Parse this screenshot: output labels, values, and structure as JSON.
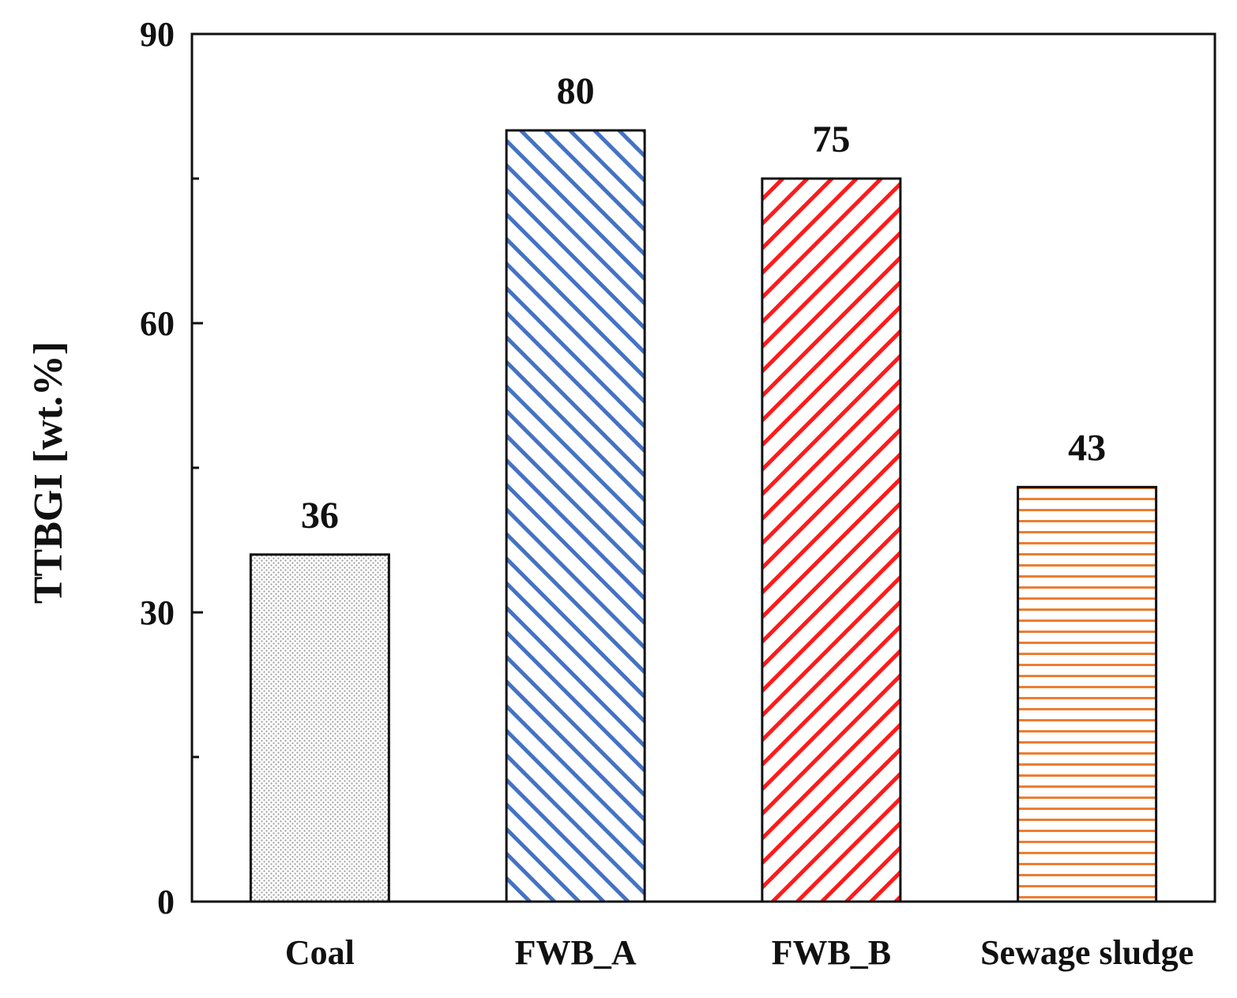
{
  "chart_data": {
    "type": "bar",
    "title": "",
    "xlabel": "",
    "ylabel": "TTBGI [wt.%]",
    "ylim": [
      0,
      90
    ],
    "yticks": [
      0,
      30,
      60,
      90
    ],
    "minor_step": 15,
    "grid": false,
    "categories": [
      "Coal",
      "FWB_A",
      "FWB_B",
      "Sewage sludge"
    ],
    "values": [
      36,
      80,
      75,
      43
    ],
    "data_labels": [
      "36",
      "80",
      "75",
      "43"
    ],
    "bars": [
      {
        "pattern": "dots",
        "color": "#9a9a9a"
      },
      {
        "pattern": "diag-back",
        "color": "#4472c4"
      },
      {
        "pattern": "diag-fwd",
        "color": "#ff1a1a"
      },
      {
        "pattern": "horizontal",
        "color": "#ed7d31"
      }
    ]
  }
}
